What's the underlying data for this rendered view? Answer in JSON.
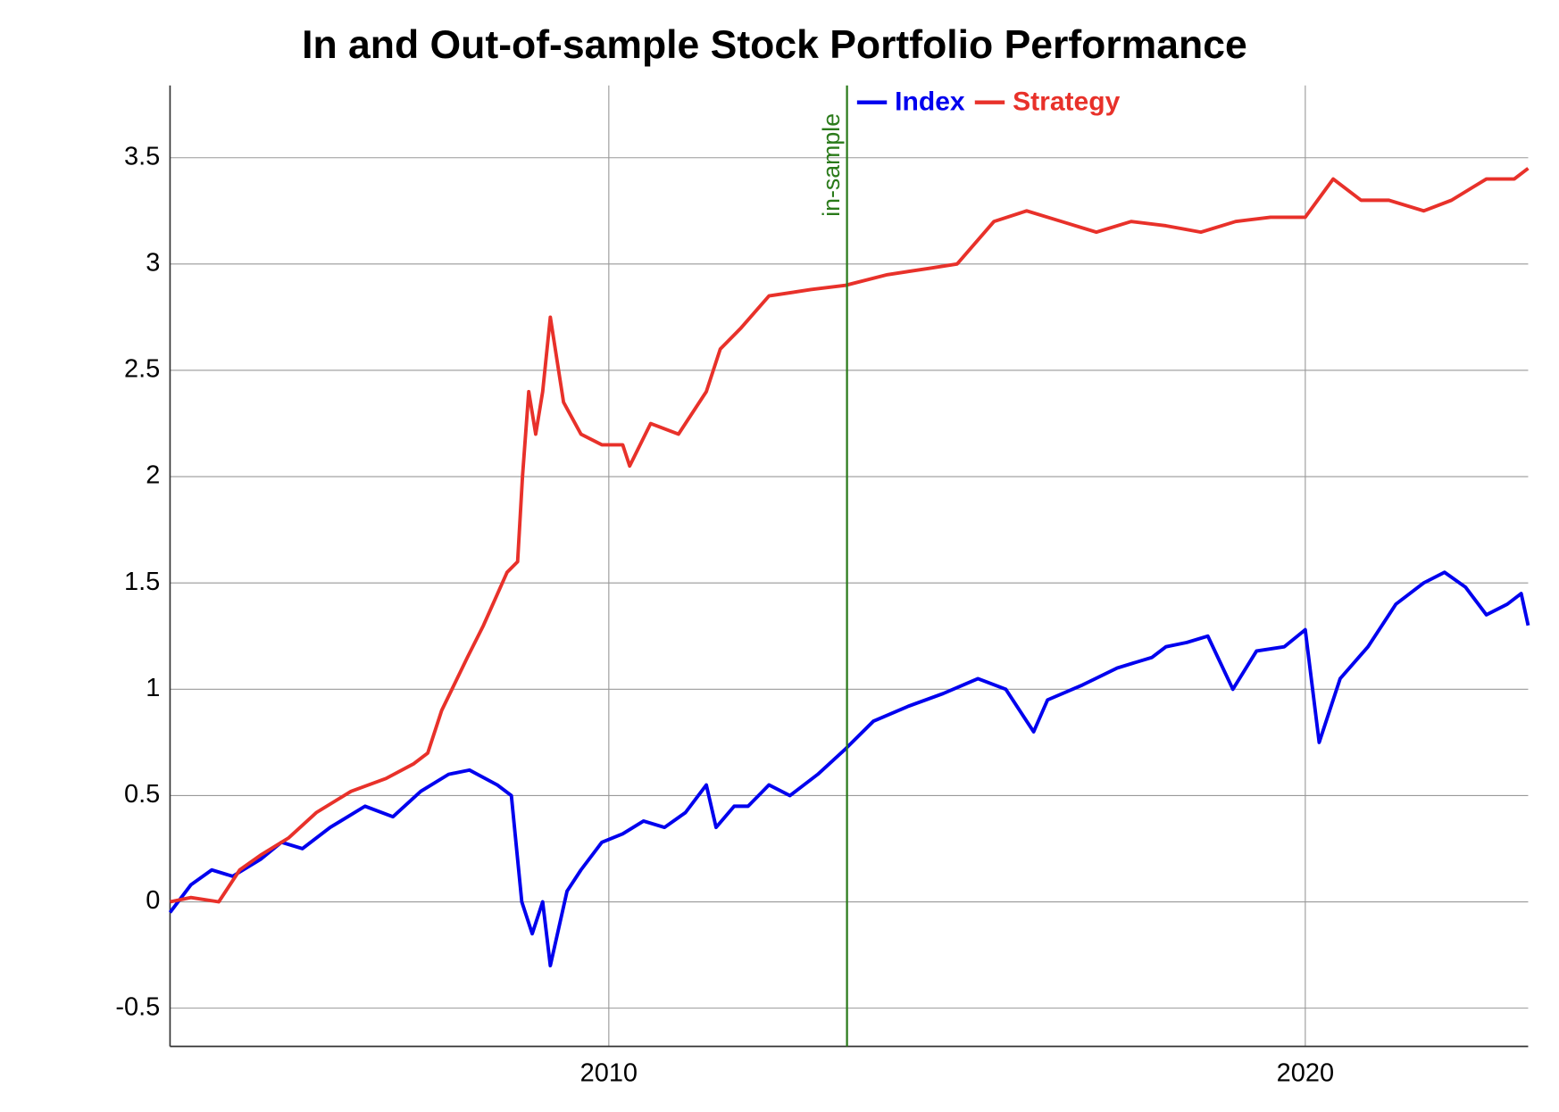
{
  "chart_data": {
    "type": "line",
    "title": "In and Out-of-sample Stock Portfolio Performance",
    "xlim": [
      2003.7,
      2023.2
    ],
    "xticks": [
      2010,
      2020
    ],
    "ylim": [
      -0.68,
      3.84
    ],
    "yticks": [
      -0.5,
      0,
      0.5,
      1,
      1.5,
      2,
      2.5,
      3,
      3.5
    ],
    "grid": true,
    "legend": "top",
    "annotations": [
      {
        "x": 2013.42,
        "label": "in-sample",
        "color": "#2a7a1a"
      }
    ],
    "series": [
      {
        "name": "Index",
        "color": "#0000ee",
        "x": [
          2003.7,
          2004.0,
          2004.3,
          2004.6,
          2005.0,
          2005.3,
          2005.6,
          2006.0,
          2006.5,
          2006.9,
          2007.3,
          2007.7,
          2008.0,
          2008.4,
          2008.6,
          2008.75,
          2008.9,
          2009.05,
          2009.16,
          2009.4,
          2009.6,
          2009.9,
          2010.2,
          2010.5,
          2010.8,
          2011.1,
          2011.4,
          2011.54,
          2011.8,
          2012.0,
          2012.3,
          2012.6,
          2013.0,
          2013.4,
          2013.8,
          2014.3,
          2014.8,
          2015.3,
          2015.7,
          2016.1,
          2016.3,
          2016.8,
          2017.3,
          2017.8,
          2018.0,
          2018.3,
          2018.6,
          2018.96,
          2019.3,
          2019.7,
          2020.0,
          2020.2,
          2020.5,
          2020.9,
          2021.3,
          2021.7,
          2022.0,
          2022.3,
          2022.6,
          2022.9,
          2023.1,
          2023.2
        ],
        "values": [
          -0.05,
          0.08,
          0.15,
          0.12,
          0.2,
          0.28,
          0.25,
          0.35,
          0.45,
          0.4,
          0.52,
          0.6,
          0.62,
          0.55,
          0.5,
          0.0,
          -0.15,
          0.0,
          -0.3,
          0.05,
          0.15,
          0.28,
          0.32,
          0.38,
          0.35,
          0.42,
          0.55,
          0.35,
          0.45,
          0.45,
          0.55,
          0.5,
          0.6,
          0.72,
          0.85,
          0.92,
          0.98,
          1.05,
          1.0,
          0.8,
          0.95,
          1.02,
          1.1,
          1.15,
          1.2,
          1.22,
          1.25,
          1.0,
          1.18,
          1.2,
          1.28,
          0.75,
          1.05,
          1.2,
          1.4,
          1.5,
          1.55,
          1.48,
          1.35,
          1.4,
          1.45,
          1.3
        ]
      },
      {
        "name": "Strategy",
        "color": "#e8312a",
        "x": [
          2003.7,
          2004.0,
          2004.4,
          2004.7,
          2005.0,
          2005.4,
          2005.8,
          2006.3,
          2006.8,
          2007.2,
          2007.4,
          2007.6,
          2007.97,
          2008.2,
          2008.54,
          2008.69,
          2008.76,
          2008.85,
          2008.95,
          2009.05,
          2009.16,
          2009.35,
          2009.6,
          2009.9,
          2010.2,
          2010.3,
          2010.6,
          2011.0,
          2011.4,
          2011.6,
          2011.9,
          2012.3,
          2012.9,
          2013.4,
          2014.0,
          2014.6,
          2015.0,
          2015.53,
          2016.0,
          2016.5,
          2017.0,
          2017.5,
          2018.0,
          2018.5,
          2019.0,
          2019.5,
          2020.0,
          2020.4,
          2020.8,
          2021.2,
          2021.7,
          2022.1,
          2022.6,
          2023.0,
          2023.2
        ],
        "values": [
          0.0,
          0.02,
          0.0,
          0.15,
          0.22,
          0.3,
          0.42,
          0.52,
          0.58,
          0.65,
          0.7,
          0.9,
          1.15,
          1.3,
          1.55,
          1.6,
          2.0,
          2.4,
          2.2,
          2.4,
          2.75,
          2.35,
          2.2,
          2.15,
          2.15,
          2.05,
          2.25,
          2.2,
          2.4,
          2.6,
          2.7,
          2.85,
          2.88,
          2.9,
          2.95,
          2.98,
          3.0,
          3.2,
          3.25,
          3.2,
          3.15,
          3.2,
          3.18,
          3.15,
          3.2,
          3.22,
          3.22,
          3.4,
          3.3,
          3.3,
          3.25,
          3.3,
          3.4,
          3.4,
          3.45
        ]
      }
    ]
  }
}
